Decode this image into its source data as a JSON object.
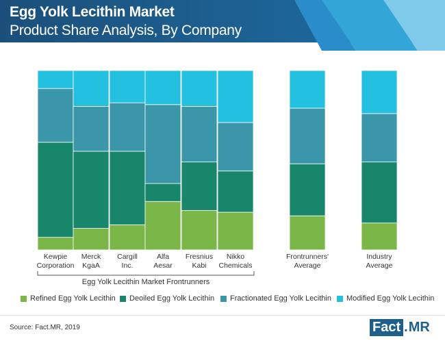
{
  "header": {
    "title": "Egg Yolk Lecithin Market",
    "subtitle": "Product Share Analysis, By Company",
    "colors": {
      "band_dark": "#1b4f7a",
      "band_mid": "#1e6fa6",
      "stripe1": "#33a6d8",
      "stripe2": "#7fcaea"
    }
  },
  "chart_data": {
    "type": "bar",
    "stacked": true,
    "normalized": true,
    "categories": [
      "Kewpie Corporation",
      "Merck KgaA",
      "Cargill Inc.",
      "Alfa Aesar",
      "Fresnius Kabi",
      "Nikko Chemicals",
      "Frontrunners' Average",
      "Industry Average"
    ],
    "category_labels": [
      [
        "Kewpie",
        "Corporation"
      ],
      [
        "Merck",
        "KgaA"
      ],
      [
        "Cargill",
        "Inc."
      ],
      [
        "Alfa",
        "Aesar"
      ],
      [
        "Fresnius",
        "Kabi"
      ],
      [
        "Nikko",
        "Chemicals"
      ],
      [
        "Frontrunners'",
        "Average"
      ],
      [
        "Industry",
        "Average"
      ]
    ],
    "series": [
      {
        "name": "Refined Egg Yolk Lecithin",
        "color": "#7ab648",
        "values": [
          7,
          12,
          14,
          27,
          22,
          21,
          19,
          15
        ]
      },
      {
        "name": "Deoiled Egg Yolk Lecithin",
        "color": "#17866b",
        "values": [
          53,
          43,
          41,
          10,
          27,
          23,
          29,
          34
        ]
      },
      {
        "name": "Fractionated Egg Yolk Lecithin",
        "color": "#3a96a8",
        "values": [
          30,
          25,
          27,
          44,
          31,
          27,
          31,
          27
        ]
      },
      {
        "name": "Modified Egg Yolk Lecithin",
        "color": "#24c0e0",
        "values": [
          10,
          20,
          18,
          19,
          20,
          29,
          21,
          24
        ]
      }
    ],
    "group_label": "Egg Yolk Lecithin Market Frontrunners",
    "ylim": [
      0,
      100
    ],
    "grid": false,
    "legend_position": "bottom"
  },
  "footer": {
    "source": "Source: Fact.MR, 2019",
    "logo_left": "Fact",
    "logo_dot": ".",
    "logo_right": "MR"
  }
}
